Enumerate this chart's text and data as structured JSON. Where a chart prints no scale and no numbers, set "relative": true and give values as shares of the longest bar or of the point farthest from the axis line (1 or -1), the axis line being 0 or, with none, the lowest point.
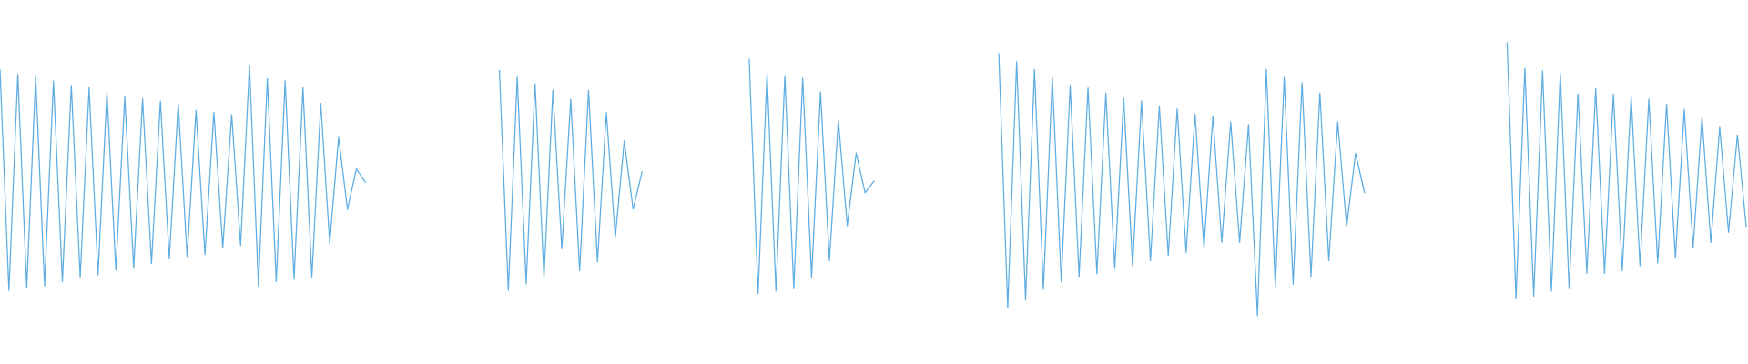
{
  "chart_data": [
    {
      "type": "line",
      "relative": true,
      "tick_labels": false,
      "marker": "none",
      "line_style": "solid",
      "categories": [
        null,
        null,
        null,
        null,
        null,
        null,
        null,
        null,
        null,
        null,
        null,
        null,
        null,
        null,
        null,
        null,
        null,
        null,
        null,
        null,
        null,
        null,
        null,
        null,
        null,
        null,
        null,
        null,
        null,
        null,
        null,
        null,
        null,
        null,
        null,
        null,
        null,
        null,
        null,
        null,
        null,
        null
      ],
      "series": [
        {
          "color": "#5dade2",
          "values": [
            0.98,
            0,
            0.96,
            0.01,
            0.95,
            0.02,
            0.93,
            0.04,
            0.91,
            0.06,
            0.9,
            0.07,
            0.88,
            0.09,
            0.86,
            0.1,
            0.85,
            0.12,
            0.84,
            0.14,
            0.83,
            0.15,
            0.8,
            0.16,
            0.79,
            0.19,
            0.78,
            0.2,
            1.0,
            0.02,
            0.94,
            0.04,
            0.93,
            0.05,
            0.9,
            0.06,
            0.83,
            0.21,
            0.68,
            0.36,
            0.54,
            0.48
          ]
        }
      ]
    },
    {
      "type": "line",
      "relative": true,
      "tick_labels": false,
      "marker": "none",
      "line_style": "solid",
      "categories": [
        null,
        null,
        null,
        null,
        null,
        null,
        null,
        null,
        null,
        null,
        null,
        null,
        null,
        null,
        null,
        null,
        null
      ],
      "series": [
        {
          "color": "#5dade2",
          "values": [
            1.0,
            0,
            0.97,
            0.03,
            0.94,
            0.06,
            0.91,
            0.19,
            0.87,
            0.09,
            0.91,
            0.13,
            0.81,
            0.24,
            0.68,
            0.37,
            0.54
          ]
        }
      ]
    },
    {
      "type": "line",
      "relative": true,
      "tick_labels": false,
      "marker": "none",
      "line_style": "solid",
      "categories": [
        null,
        null,
        null,
        null,
        null,
        null,
        null,
        null,
        null,
        null,
        null,
        null,
        null,
        null,
        null
      ],
      "series": [
        {
          "color": "#5dade2",
          "values": [
            1.0,
            0,
            0.94,
            0.01,
            0.93,
            0.02,
            0.92,
            0.07,
            0.86,
            0.14,
            0.74,
            0.29,
            0.6,
            0.43,
            0.48
          ]
        }
      ]
    },
    {
      "type": "line",
      "relative": true,
      "tick_labels": false,
      "marker": "none",
      "line_style": "solid",
      "categories": [
        null,
        null,
        null,
        null,
        null,
        null,
        null,
        null,
        null,
        null,
        null,
        null,
        null,
        null,
        null,
        null,
        null,
        null,
        null,
        null,
        null,
        null,
        null,
        null,
        null,
        null,
        null,
        null,
        null,
        null,
        null,
        null,
        null,
        null,
        null,
        null,
        null,
        null,
        null,
        null,
        null,
        null
      ],
      "series": [
        {
          "color": "#5dade2",
          "values": [
            1.0,
            0.03,
            0.97,
            0.06,
            0.94,
            0.1,
            0.91,
            0.13,
            0.88,
            0.15,
            0.87,
            0.16,
            0.85,
            0.18,
            0.83,
            0.19,
            0.82,
            0.21,
            0.8,
            0.23,
            0.79,
            0.24,
            0.77,
            0.26,
            0.76,
            0.28,
            0.74,
            0.28,
            0.73,
            0,
            0.94,
            0.11,
            0.91,
            0.12,
            0.89,
            0.15,
            0.85,
            0.21,
            0.74,
            0.34,
            0.62,
            0.47
          ]
        }
      ]
    },
    {
      "type": "line",
      "relative": true,
      "tick_labels": false,
      "marker": "none",
      "line_style": "solid",
      "categories": [
        null,
        null,
        null,
        null,
        null,
        null,
        null,
        null,
        null,
        null,
        null,
        null,
        null,
        null,
        null,
        null,
        null,
        null,
        null,
        null,
        null,
        null,
        null,
        null,
        null,
        null,
        null,
        null
      ],
      "series": [
        {
          "color": "#5dade2",
          "values": [
            1.0,
            0,
            0.9,
            0.01,
            0.89,
            0.03,
            0.88,
            0.04,
            0.8,
            0.1,
            0.82,
            0.1,
            0.8,
            0.11,
            0.79,
            0.13,
            0.78,
            0.14,
            0.76,
            0.16,
            0.74,
            0.2,
            0.71,
            0.22,
            0.67,
            0.26,
            0.64,
            0.28
          ]
        }
      ]
    }
  ]
}
